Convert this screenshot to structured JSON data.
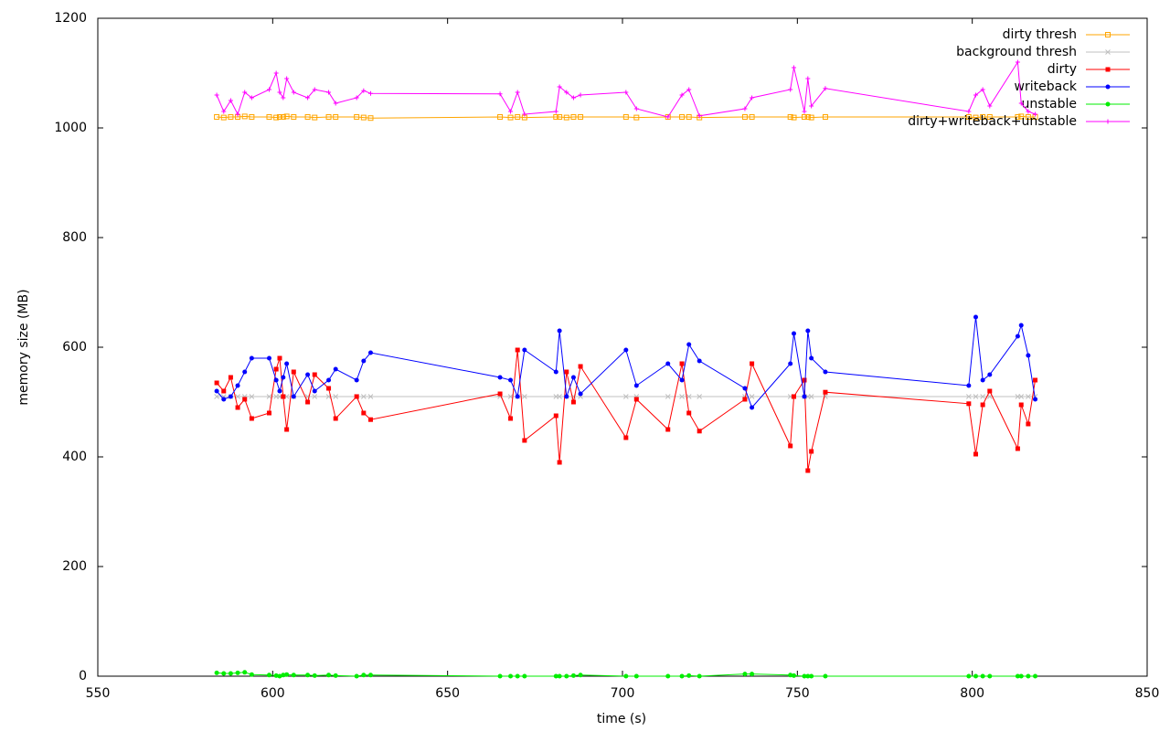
{
  "chart_data": {
    "type": "line",
    "xlabel": "time (s)",
    "ylabel": "memory size (MB)",
    "x": [
      584,
      586,
      588,
      590,
      592,
      594,
      599,
      601,
      602,
      603,
      604,
      606,
      610,
      612,
      616,
      618,
      624,
      626,
      628,
      665,
      668,
      670,
      672,
      681,
      682,
      684,
      686,
      688,
      701,
      704,
      713,
      717,
      719,
      722,
      735,
      737,
      748,
      749,
      752,
      753,
      754,
      758,
      799,
      801,
      803,
      805,
      813,
      814,
      816,
      818
    ],
    "xlim": [
      550,
      850
    ],
    "xticks": [
      550,
      600,
      650,
      700,
      750,
      800,
      850
    ],
    "ylim": [
      0,
      1200
    ],
    "yticks": [
      0,
      200,
      400,
      600,
      800,
      1000,
      1200
    ],
    "grid": false,
    "legend": "top-right",
    "series": [
      {
        "name": "dirty thresh",
        "color": "#ffa500",
        "marker": "open-square",
        "values": [
          1020,
          1019,
          1020,
          1020,
          1021,
          1020,
          1020,
          1019,
          1020,
          1020,
          1021,
          1020,
          1020,
          1019,
          1020,
          1020,
          1020,
          1019,
          1018,
          1020,
          1019,
          1020,
          1019,
          1020,
          1020,
          1019,
          1020,
          1020,
          1020,
          1019,
          1020,
          1020,
          1020,
          1019,
          1020,
          1020,
          1020,
          1019,
          1020,
          1020,
          1019,
          1020,
          1020,
          1019,
          1020,
          1020,
          1020,
          1021,
          1020,
          1020
        ]
      },
      {
        "name": "background thresh",
        "color": "#c0c0c0",
        "marker": "cross",
        "values": [
          510,
          510,
          510,
          510,
          510,
          510,
          510,
          510,
          510,
          510,
          510,
          510,
          510,
          510,
          510,
          510,
          510,
          510,
          510,
          510,
          510,
          510,
          510,
          510,
          510,
          510,
          510,
          510,
          510,
          510,
          510,
          510,
          510,
          510,
          510,
          510,
          510,
          510,
          510,
          510,
          510,
          510,
          510,
          510,
          510,
          510,
          510,
          510,
          510,
          510
        ]
      },
      {
        "name": "dirty",
        "color": "#ff0000",
        "marker": "square",
        "values": [
          535,
          520,
          545,
          490,
          505,
          470,
          480,
          560,
          580,
          510,
          450,
          555,
          500,
          550,
          525,
          470,
          510,
          480,
          468,
          515,
          470,
          595,
          430,
          475,
          390,
          555,
          500,
          565,
          435,
          505,
          450,
          570,
          480,
          447,
          505,
          570,
          420,
          510,
          540,
          375,
          410,
          518,
          497,
          405,
          495,
          520,
          415,
          495,
          460,
          540
        ]
      },
      {
        "name": "writeback",
        "color": "#0000ff",
        "marker": "circle",
        "values": [
          520,
          505,
          510,
          530,
          555,
          580,
          580,
          540,
          520,
          545,
          570,
          510,
          550,
          520,
          540,
          560,
          540,
          575,
          590,
          545,
          540,
          510,
          595,
          555,
          630,
          510,
          545,
          515,
          595,
          530,
          570,
          540,
          605,
          575,
          525,
          490,
          570,
          625,
          510,
          630,
          580,
          555,
          530,
          655,
          540,
          550,
          620,
          640,
          585,
          505
        ]
      },
      {
        "name": "unstable",
        "color": "#00ee00",
        "marker": "circle",
        "values": [
          6,
          5,
          5,
          6,
          7,
          3,
          2,
          1,
          0,
          2,
          3,
          2,
          2,
          1,
          2,
          1,
          0,
          2,
          2,
          0,
          0,
          0,
          0,
          0,
          0,
          0,
          1,
          2,
          0,
          0,
          0,
          0,
          1,
          0,
          4,
          4,
          2,
          1,
          0,
          0,
          0,
          0,
          0,
          0,
          0,
          0,
          0,
          0,
          0,
          0
        ]
      },
      {
        "name": "dirty+writeback+unstable",
        "color": "#ff00ff",
        "marker": "plus",
        "values": [
          1060,
          1030,
          1050,
          1025,
          1065,
          1055,
          1070,
          1100,
          1065,
          1055,
          1090,
          1065,
          1055,
          1070,
          1065,
          1045,
          1055,
          1068,
          1063,
          1062,
          1030,
          1065,
          1025,
          1030,
          1075,
          1065,
          1055,
          1060,
          1065,
          1035,
          1020,
          1060,
          1070,
          1022,
          1035,
          1055,
          1070,
          1110,
          1030,
          1090,
          1040,
          1072,
          1030,
          1060,
          1070,
          1040,
          1120,
          1045,
          1030,
          1025
        ]
      }
    ]
  }
}
